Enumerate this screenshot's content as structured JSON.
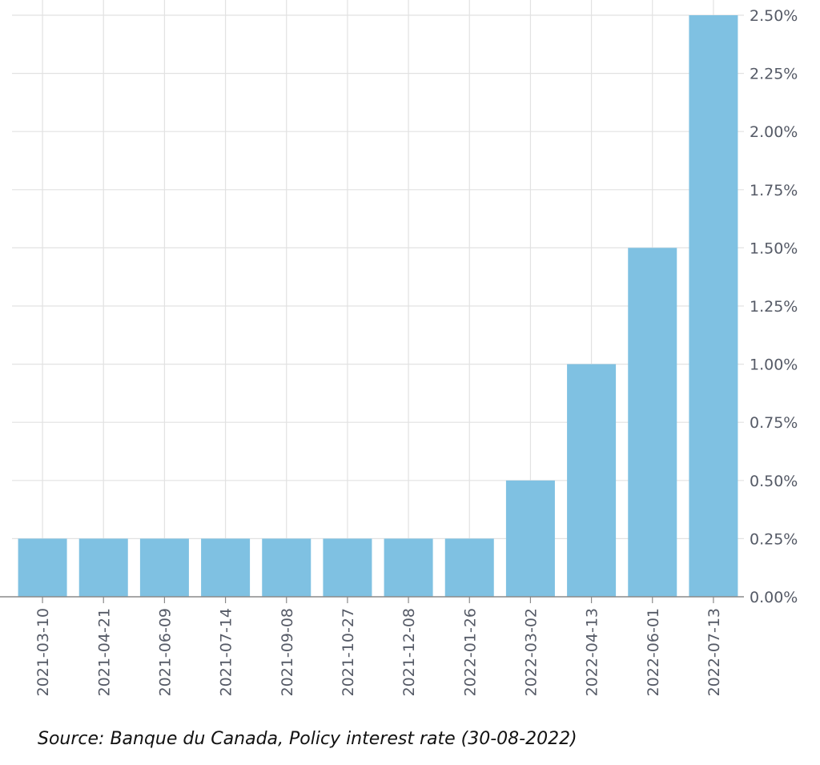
{
  "chart_data": {
    "type": "bar",
    "categories": [
      "2021-03-10",
      "2021-04-21",
      "2021-06-09",
      "2021-07-14",
      "2021-09-08",
      "2021-10-27",
      "2021-12-08",
      "2022-01-26",
      "2022-03-02",
      "2022-04-13",
      "2022-06-01",
      "2022-07-13"
    ],
    "values": [
      0.25,
      0.25,
      0.25,
      0.25,
      0.25,
      0.25,
      0.25,
      0.25,
      0.5,
      1.0,
      1.5,
      2.5
    ],
    "unit": "%",
    "ylim": [
      0,
      2.5
    ],
    "yticks": [
      "0.00%",
      "0.25%",
      "0.50%",
      "0.75%",
      "1.00%",
      "1.25%",
      "1.50%",
      "1.75%",
      "2.00%",
      "2.25%",
      "2.50%"
    ],
    "title": "",
    "xlabel": "",
    "ylabel": "",
    "y_axis_side": "right",
    "x_tick_rotation": "vertical",
    "grid": true,
    "bar_color": "#7fc1e2",
    "grid_color": "#e2e2e2",
    "axis_color": "#8a8a8a",
    "tick_label_color": "#555a66"
  },
  "source_caption": "Source: Banque du Canada, Policy interest rate (30-08-2022)"
}
